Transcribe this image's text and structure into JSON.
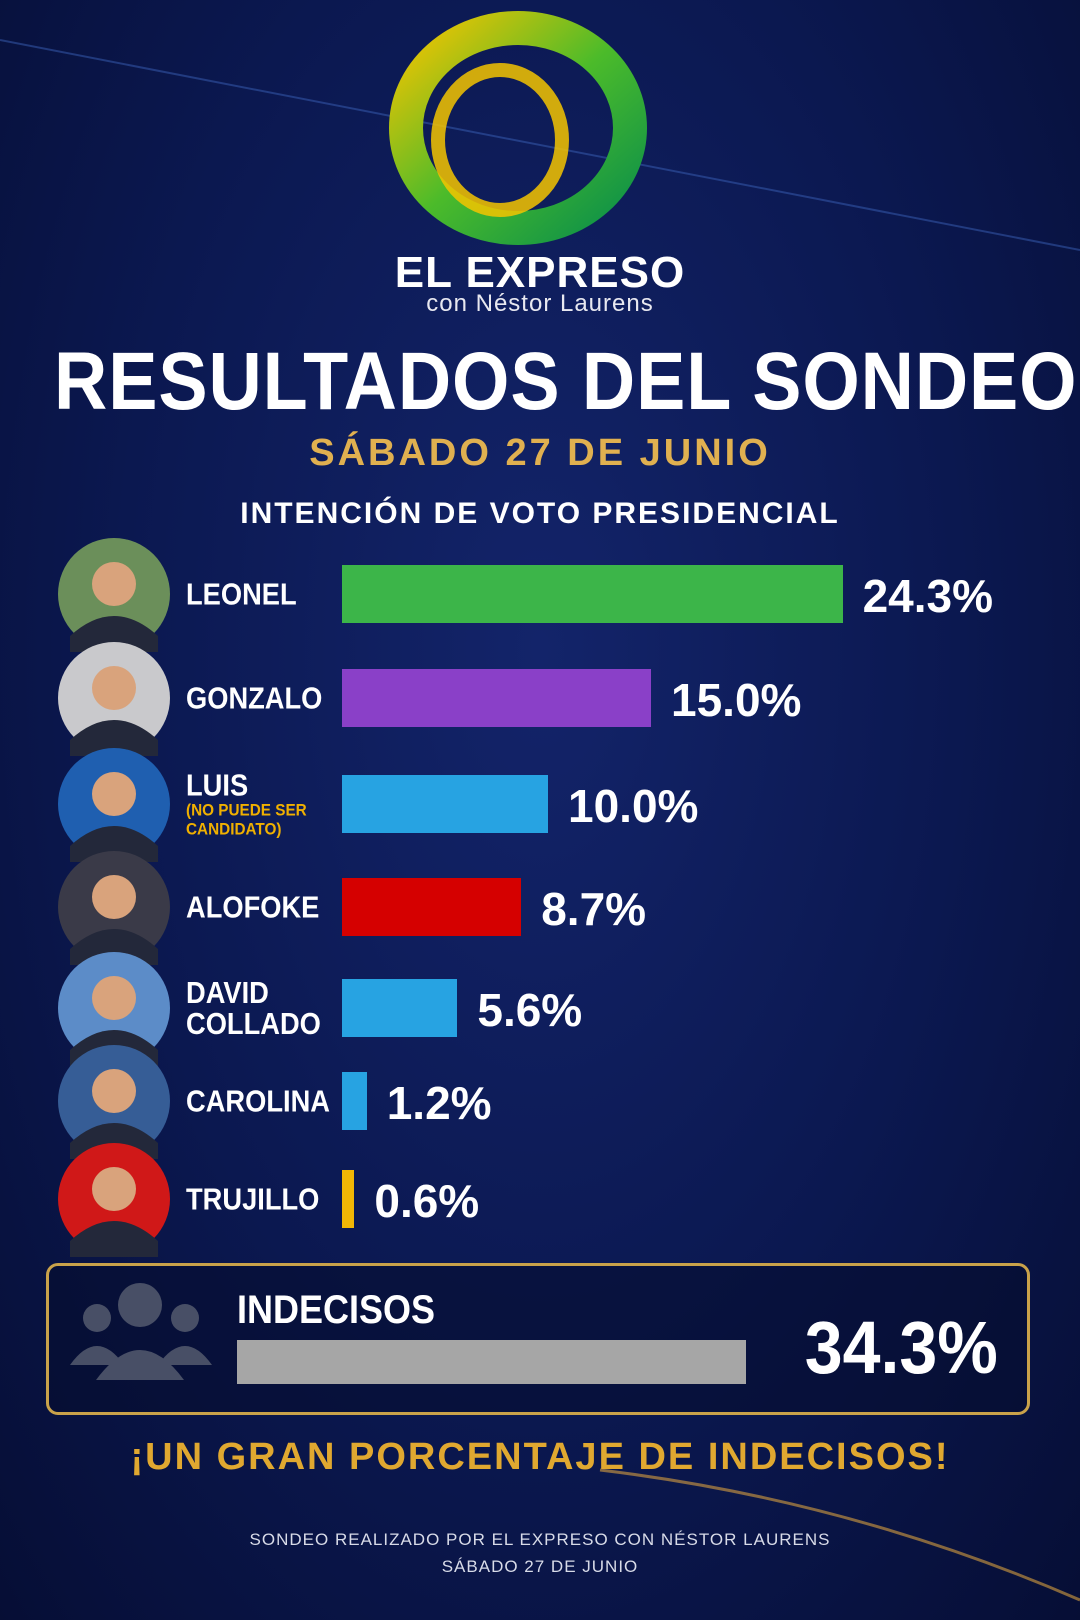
{
  "header": {
    "brand": "EL EXPRESO",
    "brand_sub": "con Néstor Laurens",
    "title": "RESULTADOS DEL SONDEO",
    "date": "SÁBADO 27 DE JUNIO"
  },
  "chart_data": {
    "type": "bar",
    "orientation": "horizontal",
    "title": "INTENCIÓN DE VOTO PRESIDENCIAL",
    "categories": [
      "LEONEL",
      "GONZALO",
      "LUIS",
      "ALOFOKE",
      "DAVID COLLADO",
      "CAROLINA",
      "TRUJILLO"
    ],
    "notes": [
      null,
      null,
      "(NO PUEDE SER CANDIDATO)",
      null,
      null,
      null,
      null
    ],
    "values": [
      24.3,
      15.0,
      10.0,
      8.7,
      5.6,
      1.2,
      0.6
    ],
    "value_labels": [
      "24.3%",
      "15.0%",
      "10.0%",
      "8.7%",
      "5.6%",
      "1.2%",
      "0.6%"
    ],
    "colors": [
      "#3cb549",
      "#8a40c8",
      "#27a3e2",
      "#d50000",
      "#27a3e2",
      "#27a3e2",
      "#f2b705"
    ]
  },
  "undecided": {
    "label": "INDECISOS",
    "value": 34.3,
    "value_label": "34.3%",
    "color": "#a6a6a6"
  },
  "callout": "¡UN GRAN PORCENTAJE DE INDECISOS!",
  "footer": [
    "SONDEO REALIZADO POR EL EXPRESO CON NÉSTOR LAURENS",
    "SÁBADO 27 DE JUNIO"
  ]
}
